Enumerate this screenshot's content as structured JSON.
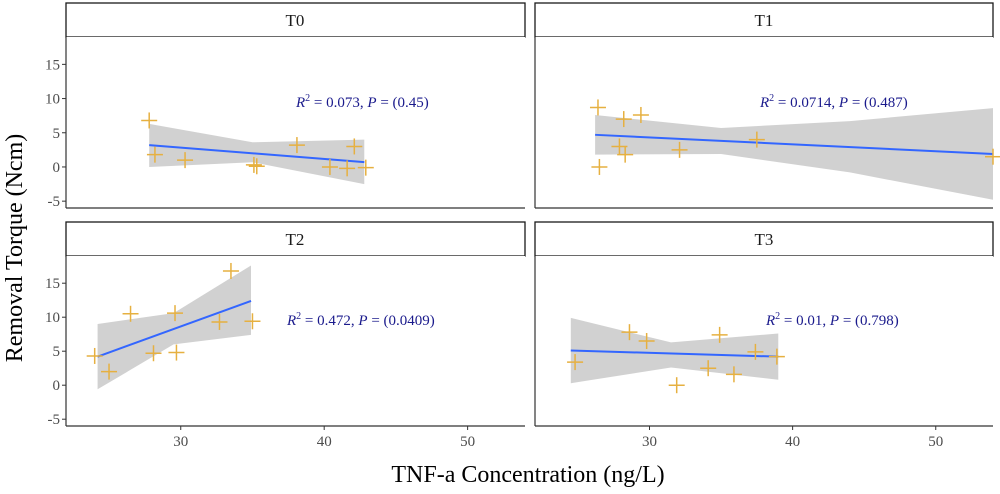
{
  "chart_data": {
    "type": "scatter",
    "xlabel": "TNF-a Concentration (ng/L)",
    "ylabel": "Removal Torque (Ncm)",
    "xlim": [
      22,
      54
    ],
    "ylim": [
      -6,
      19
    ],
    "xticks": [
      30,
      40,
      50
    ],
    "yticks": [
      -5,
      0,
      5,
      10,
      15
    ],
    "grid": false,
    "colors": {
      "points": "#e6b040",
      "fit_line": "#3366ff",
      "ribbon": "#bebebe",
      "annotation": "#1a1a8c",
      "strip_border": "#1a1a1a"
    },
    "marker": "plus",
    "facets": [
      {
        "label": "T0",
        "annotation": {
          "r2_prefix": "R",
          "r2_exp": "2",
          "r2_value": " = 0.073, ",
          "p_prefix": "P",
          "p_value": " = (0.45)"
        },
        "x": [
          27.8,
          28.2,
          30.3,
          35.1,
          35.3,
          38.1,
          40.4,
          41.6,
          42.1,
          42.9
        ],
        "y": [
          6.8,
          1.8,
          1.0,
          0.3,
          0.1,
          3.2,
          0.0,
          -0.2,
          3.0,
          -0.1
        ],
        "fit": {
          "x": [
            27.8,
            42.8
          ],
          "y": [
            3.2,
            0.7
          ]
        },
        "ci": [
          {
            "x": 27.8,
            "lo": 0.0,
            "hi": 6.3
          },
          {
            "x": 35.0,
            "lo": 0.7,
            "hi": 3.6
          },
          {
            "x": 42.8,
            "lo": -2.5,
            "hi": 4.0
          }
        ]
      },
      {
        "label": "T1",
        "annotation": {
          "r2_prefix": "R",
          "r2_exp": "2",
          "r2_value": " = 0.0714, ",
          "p_prefix": "P",
          "p_value": " = (0.487)"
        },
        "x": [
          26.4,
          26.5,
          27.9,
          28.2,
          28.3,
          29.4,
          32.1,
          37.5,
          54.0
        ],
        "y": [
          8.7,
          0.0,
          3.0,
          7.0,
          1.8,
          7.6,
          2.5,
          4.0,
          1.5
        ],
        "fit": {
          "x": [
            26.2,
            54.0
          ],
          "y": [
            4.7,
            1.9
          ]
        },
        "ci": [
          {
            "x": 26.2,
            "lo": 1.8,
            "hi": 7.6
          },
          {
            "x": 35.0,
            "lo": 1.9,
            "hi": 5.7
          },
          {
            "x": 44.0,
            "lo": -0.8,
            "hi": 6.7
          },
          {
            "x": 54.0,
            "lo": -4.8,
            "hi": 8.6
          }
        ]
      },
      {
        "label": "T2",
        "annotation": {
          "r2_prefix": "R",
          "r2_exp": "2",
          "r2_value": " = 0.472, ",
          "p_prefix": "P",
          "p_value": " = (0.0409)"
        },
        "x": [
          24.0,
          25.0,
          26.5,
          28.1,
          29.6,
          29.7,
          32.7,
          33.5,
          35.0
        ],
        "y": [
          4.3,
          2.0,
          10.5,
          4.7,
          10.6,
          4.8,
          9.3,
          16.8,
          9.4
        ],
        "fit": {
          "x": [
            24.2,
            34.9
          ],
          "y": [
            4.2,
            12.4
          ]
        },
        "ci": [
          {
            "x": 24.2,
            "lo": -0.6,
            "hi": 9.0
          },
          {
            "x": 29.5,
            "lo": 6.0,
            "hi": 10.6
          },
          {
            "x": 34.9,
            "lo": 7.4,
            "hi": 17.6
          }
        ]
      },
      {
        "label": "T3",
        "annotation": {
          "r2_prefix": "R",
          "r2_exp": "2",
          "r2_value": " = 0.01, ",
          "p_prefix": "P",
          "p_value": " = (0.798)"
        },
        "x": [
          24.8,
          28.6,
          29.8,
          31.9,
          34.1,
          34.9,
          35.9,
          37.4,
          38.9
        ],
        "y": [
          3.4,
          7.8,
          6.5,
          0.0,
          2.5,
          7.4,
          1.6,
          4.9,
          4.2
        ],
        "fit": {
          "x": [
            24.5,
            39.0
          ],
          "y": [
            5.1,
            4.2
          ]
        },
        "ci": [
          {
            "x": 24.5,
            "lo": 0.3,
            "hi": 9.9
          },
          {
            "x": 31.5,
            "lo": 2.6,
            "hi": 6.3
          },
          {
            "x": 39.0,
            "lo": 0.8,
            "hi": 7.6
          }
        ]
      }
    ]
  }
}
